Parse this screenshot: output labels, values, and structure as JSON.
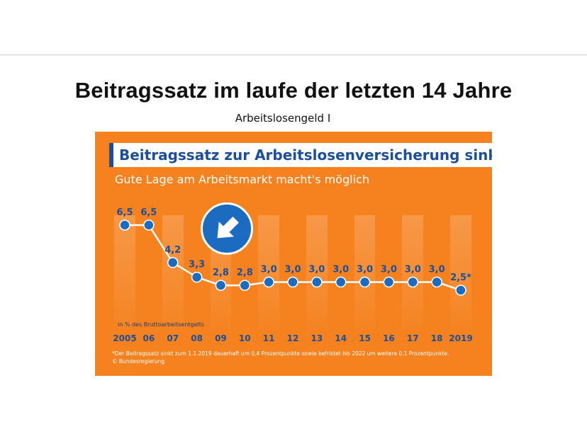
{
  "slide": {
    "title": "Beitragssatz im laufe der letzten 14 Jahre",
    "subtitle": "Arbeitslosengeld I"
  },
  "infographic": {
    "headline": "Beitragssatz zur Arbeitslosenversicherung sinkt",
    "tagline": "Gute Lage am Arbeitsmarkt macht's möglich",
    "unit_note": "in % des Bruttoarbeitsentgelts",
    "footnote": "*Der Beitragssatz sinkt zum 1.1.2019 dauerhaft um 0,4 Prozentpunkte sowie befristet bis 2022 um weitere 0,1 Prozentpunkte.",
    "credit": "© Bundesregierung",
    "arrow_icon": "arrow-down-right-icon",
    "colors": {
      "background": "#f5821f",
      "accent": "#1b4f9c",
      "point": "#1b6cc0",
      "line": "#ffffff"
    }
  },
  "chart_data": {
    "type": "line",
    "categories": [
      "2005",
      "06",
      "07",
      "08",
      "09",
      "10",
      "11",
      "12",
      "13",
      "14",
      "15",
      "16",
      "17",
      "18",
      "2019"
    ],
    "values": [
      6.5,
      6.5,
      4.2,
      3.3,
      2.8,
      2.8,
      3.0,
      3.0,
      3.0,
      3.0,
      3.0,
      3.0,
      3.0,
      3.0,
      2.5
    ],
    "labels": [
      "6,5",
      "6,5",
      "4,2",
      "3,3",
      "2,8",
      "2,8",
      "3,0",
      "3,0",
      "3,0",
      "3,0",
      "3,0",
      "3,0",
      "3,0",
      "3,0",
      "2,5*"
    ],
    "title": "Beitragssatz zur Arbeitslosenversicherung sinkt",
    "xlabel": "",
    "ylabel": "in % des Bruttoarbeitsentgelts",
    "ylim": [
      2.5,
      6.5
    ],
    "grid": false,
    "legend": "none"
  }
}
